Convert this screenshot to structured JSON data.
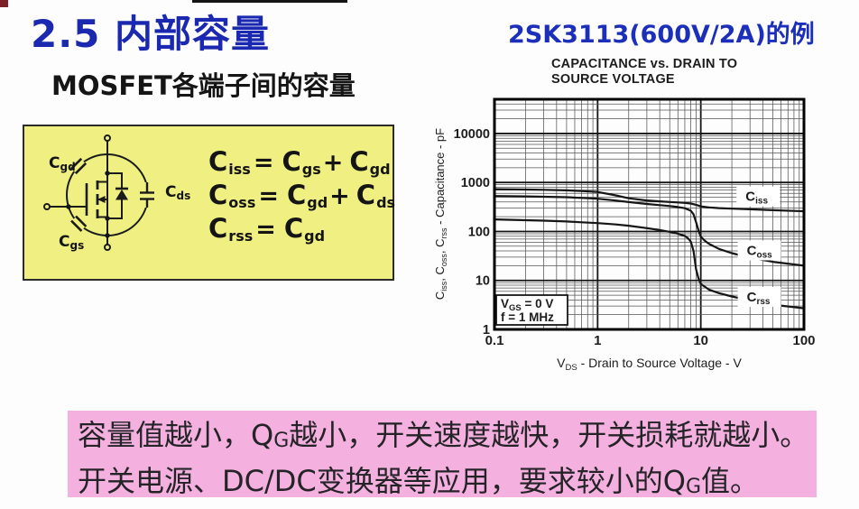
{
  "slide": {
    "title": "2.5 内部容量",
    "subtitle": "MOSFET各端子间的容量",
    "example_label": "2SK3113(600V/2A)的例"
  },
  "colors": {
    "accent_blue": "#1b29b0",
    "panel_yellow": "#f0f082",
    "note_pink": "#f4b0de",
    "ink": "#141414"
  },
  "diagram": {
    "labels": {
      "cgd": {
        "main": "C",
        "sub": "gd"
      },
      "cgs": {
        "main": "C",
        "sub": "gs"
      },
      "cds": {
        "main": "C",
        "sub": "ds"
      }
    },
    "formulas": [
      {
        "l": "C",
        "ls": "iss",
        "eq": "=",
        "a": "C",
        "as": "gs",
        "op": "+",
        "b": "C",
        "bs": "gd"
      },
      {
        "l": "C",
        "ls": "oss",
        "eq": "=",
        "a": "C",
        "as": "gd",
        "op": "+",
        "b": "C",
        "bs": "ds"
      },
      {
        "l": "C",
        "ls": "rss",
        "eq": "=",
        "a": "C",
        "as": "gd",
        "op": "",
        "b": "",
        "bs": ""
      }
    ]
  },
  "chart_data": {
    "type": "line",
    "title_lines": [
      "CAPACITANCE vs. DRAIN TO",
      "SOURCE VOLTAGE"
    ],
    "grid": true,
    "legend_position": "labels-on-plot",
    "x_axis": {
      "scale": "log",
      "min": 0.1,
      "max": 100,
      "ticks": [
        0.1,
        1,
        10,
        100
      ],
      "tick_labels": [
        "0.1",
        "1",
        "10",
        "100"
      ],
      "label_segments": [
        {
          "t": "V"
        },
        {
          "t": "DS",
          "sub": true
        },
        {
          "t": " - Drain to Source Voltage - V"
        }
      ]
    },
    "y_axis": {
      "scale": "log",
      "min": 1,
      "max": 50000,
      "ticks": [
        1,
        10,
        100,
        1000,
        10000
      ],
      "tick_labels": [
        "1",
        "10",
        "100",
        "1000",
        "10000"
      ],
      "label_segments": [
        {
          "t": "C"
        },
        {
          "t": "iss",
          "sub": true
        },
        {
          "t": ", C"
        },
        {
          "t": "oss",
          "sub": true
        },
        {
          "t": ", C"
        },
        {
          "t": "rss",
          "sub": true
        },
        {
          "t": " - Capacitance - pF"
        }
      ]
    },
    "annotation": {
      "lines": [
        [
          {
            "t": "V"
          },
          {
            "t": "GS",
            "sub": true
          },
          {
            "t": " = 0 V"
          }
        ],
        [
          {
            "t": "f = 1 MHz"
          }
        ]
      ]
    },
    "series": [
      {
        "id": "ciss",
        "name_segments": [
          {
            "t": "C"
          },
          {
            "t": "iss",
            "sub": true
          }
        ],
        "label_at": [
          36,
          520
        ],
        "points": [
          [
            0.1,
            730
          ],
          [
            0.2,
            718
          ],
          [
            0.3,
            710
          ],
          [
            0.5,
            692
          ],
          [
            0.7,
            668
          ],
          [
            1,
            640
          ],
          [
            1.5,
            545
          ],
          [
            2,
            475
          ],
          [
            3,
            430
          ],
          [
            4,
            412
          ],
          [
            5,
            400
          ],
          [
            6,
            392
          ],
          [
            7,
            383
          ],
          [
            8,
            372
          ],
          [
            9,
            350
          ],
          [
            10,
            325
          ],
          [
            12,
            310
          ],
          [
            15,
            300
          ],
          [
            20,
            292
          ],
          [
            30,
            283
          ],
          [
            50,
            272
          ],
          [
            100,
            258
          ]
        ]
      },
      {
        "id": "coss",
        "name_segments": [
          {
            "t": "C"
          },
          {
            "t": "oss",
            "sub": true
          }
        ],
        "label_at": [
          37,
          41
        ],
        "points": [
          [
            0.1,
            530
          ],
          [
            0.2,
            520
          ],
          [
            0.3,
            512
          ],
          [
            0.5,
            500
          ],
          [
            0.7,
            485
          ],
          [
            1,
            465
          ],
          [
            1.5,
            428
          ],
          [
            2,
            398
          ],
          [
            3,
            365
          ],
          [
            4,
            345
          ],
          [
            5,
            330
          ],
          [
            6,
            315
          ],
          [
            7,
            298
          ],
          [
            8,
            265
          ],
          [
            8.5,
            225
          ],
          [
            9,
            155
          ],
          [
            9.5,
            105
          ],
          [
            10,
            78
          ],
          [
            11,
            64
          ],
          [
            12,
            56
          ],
          [
            15,
            44
          ],
          [
            20,
            36
          ],
          [
            30,
            29
          ],
          [
            50,
            24
          ],
          [
            100,
            20
          ]
        ]
      },
      {
        "id": "crss",
        "name_segments": [
          {
            "t": "C"
          },
          {
            "t": "rss",
            "sub": true
          }
        ],
        "label_at": [
          37,
          4.6
        ],
        "points": [
          [
            0.1,
            176
          ],
          [
            0.2,
            170
          ],
          [
            0.3,
            166
          ],
          [
            0.5,
            160
          ],
          [
            0.7,
            154
          ],
          [
            1,
            148
          ],
          [
            1.5,
            139
          ],
          [
            2,
            131
          ],
          [
            3,
            117
          ],
          [
            4,
            107
          ],
          [
            5,
            98
          ],
          [
            6,
            90
          ],
          [
            7,
            81
          ],
          [
            7.5,
            73
          ],
          [
            8,
            62
          ],
          [
            8.5,
            40
          ],
          [
            9,
            17
          ],
          [
            9.5,
            11
          ],
          [
            10,
            8.5
          ],
          [
            12,
            6.5
          ],
          [
            15,
            5.5
          ],
          [
            20,
            4.7
          ],
          [
            30,
            3.9
          ],
          [
            50,
            3.2
          ],
          [
            100,
            2.7
          ]
        ]
      }
    ]
  },
  "note": {
    "line1": {
      "pre": "容量值越小，Q",
      "sub": "G",
      "post": "越小，开关速度越快，开关损耗就越小。"
    },
    "line2": {
      "pre": "开关电源、DC/DC变换器等应用，要求较小的Q",
      "sub": "G",
      "post": "值。"
    }
  }
}
